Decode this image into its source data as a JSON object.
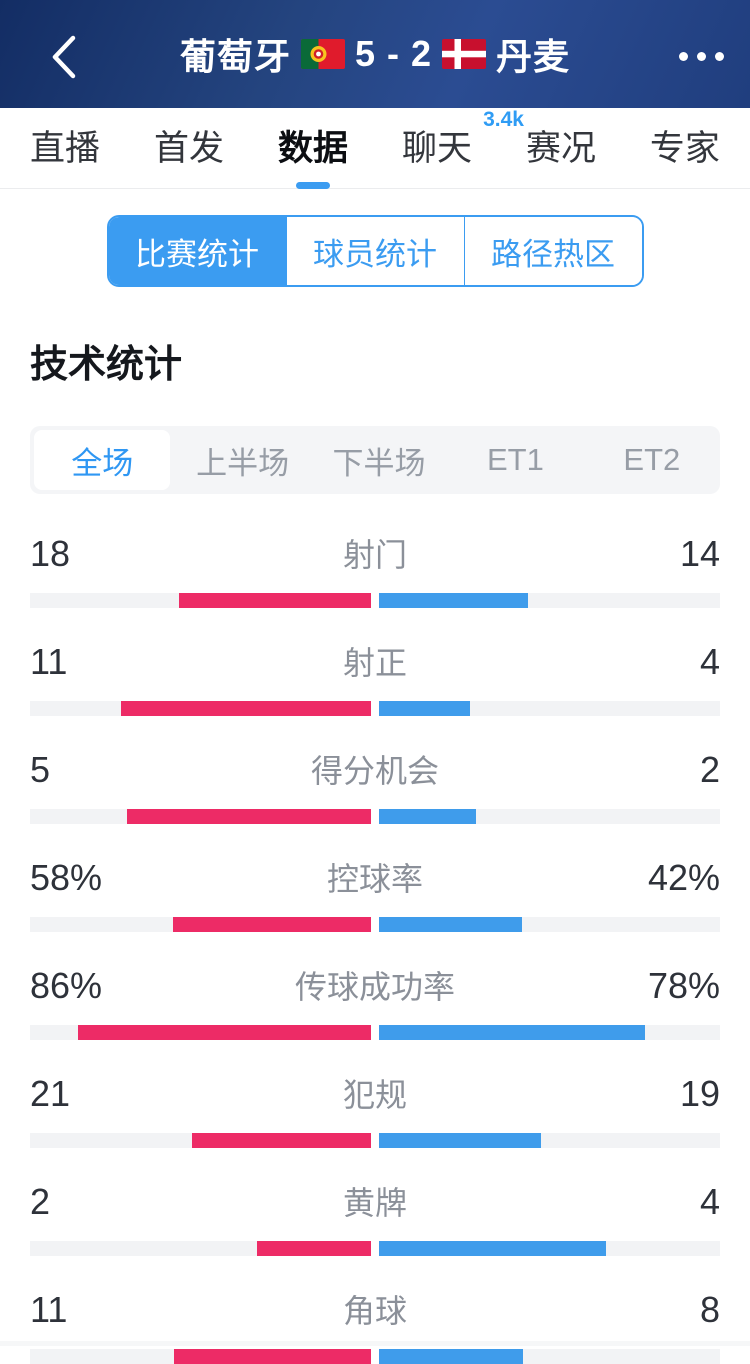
{
  "header": {
    "home_team": "葡萄牙",
    "score": "5 - 2",
    "away_team": "丹麦"
  },
  "nav": {
    "tabs": [
      {
        "label": "直播"
      },
      {
        "label": "首发"
      },
      {
        "label": "数据",
        "active": true
      },
      {
        "label": "聊天",
        "badge": "3.4k"
      },
      {
        "label": "赛况"
      },
      {
        "label": "专家"
      }
    ]
  },
  "segments": {
    "items": [
      {
        "label": "比赛统计",
        "active": true
      },
      {
        "label": "球员统计"
      },
      {
        "label": "路径热区"
      }
    ]
  },
  "section_title": "技术统计",
  "periods": {
    "items": [
      {
        "label": "全场",
        "active": true
      },
      {
        "label": "上半场"
      },
      {
        "label": "下半场"
      },
      {
        "label": "ET1"
      },
      {
        "label": "ET2"
      }
    ]
  },
  "stats": {
    "home_team": "葡萄牙",
    "away_team": "丹麦",
    "rows": [
      {
        "label": "射门",
        "home": "18",
        "away": "14"
      },
      {
        "label": "射正",
        "home": "11",
        "away": "4"
      },
      {
        "label": "得分机会",
        "home": "5",
        "away": "2"
      },
      {
        "label": "控球率",
        "home": "58%",
        "away": "42%"
      },
      {
        "label": "传球成功率",
        "home": "86%",
        "away": "78%"
      },
      {
        "label": "犯规",
        "home": "21",
        "away": "19"
      },
      {
        "label": "黄牌",
        "home": "2",
        "away": "4"
      },
      {
        "label": "角球",
        "home": "11",
        "away": "8"
      }
    ]
  },
  "colors": {
    "accent": "#3b9cf1",
    "home_bar": "#ed2b66",
    "away_bar": "#3f9ceb"
  }
}
